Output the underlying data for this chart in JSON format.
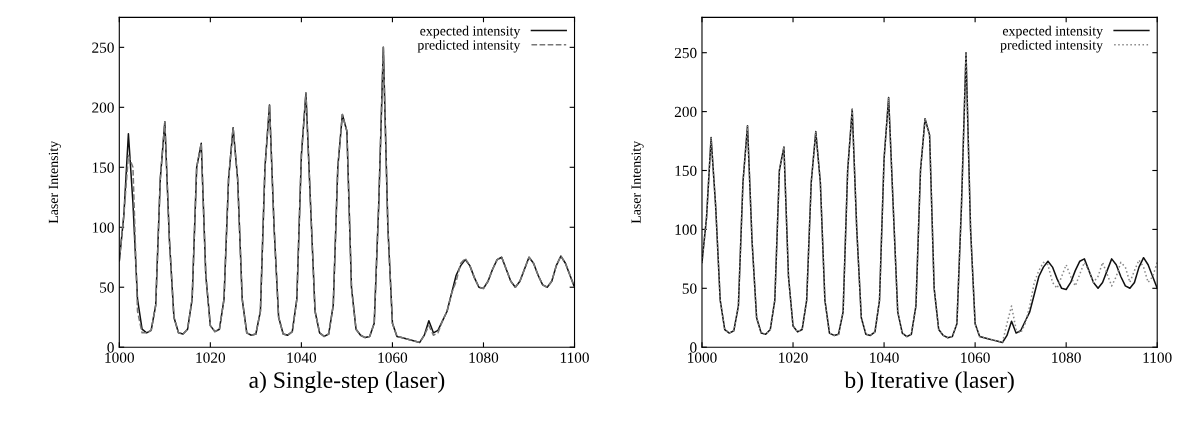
{
  "chart_data": [
    {
      "type": "line",
      "xlabel": "a) Single-step (laser)",
      "ylabel": "Laser Intensity",
      "xlim": [
        1000,
        1100
      ],
      "xticks": [
        1000,
        1020,
        1040,
        1060,
        1080,
        1100
      ],
      "ylim": [
        0,
        275
      ],
      "yticks": [
        0,
        50,
        100,
        150,
        200,
        250
      ],
      "legend": "top right",
      "grid": false,
      "x": [
        1000,
        1001,
        1002,
        1003,
        1004,
        1005,
        1006,
        1007,
        1008,
        1009,
        1010,
        1011,
        1012,
        1013,
        1014,
        1015,
        1016,
        1017,
        1018,
        1019,
        1020,
        1021,
        1022,
        1023,
        1024,
        1025,
        1026,
        1027,
        1028,
        1029,
        1030,
        1031,
        1032,
        1033,
        1034,
        1035,
        1036,
        1037,
        1038,
        1039,
        1040,
        1041,
        1042,
        1043,
        1044,
        1045,
        1046,
        1047,
        1048,
        1049,
        1050,
        1051,
        1052,
        1053,
        1054,
        1055,
        1056,
        1057,
        1058,
        1059,
        1060,
        1061,
        1062,
        1063,
        1064,
        1065,
        1066,
        1067,
        1068,
        1069,
        1070,
        1071,
        1072,
        1073,
        1074,
        1075,
        1076,
        1077,
        1078,
        1079,
        1080,
        1081,
        1082,
        1083,
        1084,
        1085,
        1086,
        1087,
        1088,
        1089,
        1090,
        1091,
        1092,
        1093,
        1094,
        1095,
        1096,
        1097,
        1098,
        1099,
        1100
      ],
      "series": [
        {
          "name": "expected intensity",
          "color": "#111111",
          "line_style": "solid",
          "values": [
            72,
            110,
            178,
            120,
            40,
            15,
            12,
            14,
            35,
            140,
            188,
            90,
            25,
            12,
            11,
            15,
            40,
            150,
            170,
            60,
            18,
            13,
            15,
            40,
            140,
            183,
            140,
            40,
            12,
            10,
            11,
            30,
            150,
            202,
            100,
            25,
            11,
            10,
            13,
            40,
            160,
            212,
            120,
            30,
            12,
            9,
            11,
            35,
            150,
            194,
            180,
            50,
            15,
            10,
            8,
            9,
            20,
            120,
            250,
            100,
            20,
            9,
            8,
            7,
            6,
            5,
            4,
            10,
            22,
            12,
            14,
            22,
            30,
            45,
            60,
            68,
            73,
            68,
            58,
            50,
            49,
            55,
            65,
            73,
            75,
            65,
            55,
            50,
            55,
            65,
            75,
            70,
            60,
            52,
            50,
            55,
            68,
            76,
            70,
            60,
            50
          ]
        },
        {
          "name": "predicted intensity",
          "color": "#777777",
          "line_style": "dashed",
          "values": [
            72,
            110,
            160,
            150,
            30,
            12,
            12,
            14,
            35,
            140,
            188,
            90,
            25,
            12,
            11,
            15,
            40,
            150,
            170,
            60,
            18,
            13,
            15,
            40,
            140,
            183,
            140,
            40,
            12,
            10,
            11,
            30,
            150,
            202,
            100,
            25,
            11,
            10,
            13,
            40,
            160,
            212,
            120,
            30,
            12,
            9,
            11,
            35,
            150,
            194,
            180,
            50,
            15,
            10,
            8,
            9,
            20,
            120,
            250,
            100,
            20,
            9,
            8,
            7,
            6,
            5,
            4,
            10,
            18,
            10,
            12,
            22,
            30,
            45,
            55,
            70,
            74,
            68,
            58,
            50,
            49,
            55,
            65,
            73,
            75,
            65,
            55,
            50,
            55,
            65,
            75,
            70,
            60,
            52,
            50,
            55,
            68,
            76,
            70,
            60,
            50
          ]
        }
      ]
    },
    {
      "type": "line",
      "xlabel": "b) Iterative (laser)",
      "ylabel": "Laser Intensity",
      "xlim": [
        1000,
        1100
      ],
      "xticks": [
        1000,
        1020,
        1040,
        1060,
        1080,
        1100
      ],
      "ylim": [
        0,
        280
      ],
      "yticks": [
        0,
        50,
        100,
        150,
        200,
        250
      ],
      "legend": "top right",
      "grid": false,
      "x": [
        1000,
        1001,
        1002,
        1003,
        1004,
        1005,
        1006,
        1007,
        1008,
        1009,
        1010,
        1011,
        1012,
        1013,
        1014,
        1015,
        1016,
        1017,
        1018,
        1019,
        1020,
        1021,
        1022,
        1023,
        1024,
        1025,
        1026,
        1027,
        1028,
        1029,
        1030,
        1031,
        1032,
        1033,
        1034,
        1035,
        1036,
        1037,
        1038,
        1039,
        1040,
        1041,
        1042,
        1043,
        1044,
        1045,
        1046,
        1047,
        1048,
        1049,
        1050,
        1051,
        1052,
        1053,
        1054,
        1055,
        1056,
        1057,
        1058,
        1059,
        1060,
        1061,
        1062,
        1063,
        1064,
        1065,
        1066,
        1067,
        1068,
        1069,
        1070,
        1071,
        1072,
        1073,
        1074,
        1075,
        1076,
        1077,
        1078,
        1079,
        1080,
        1081,
        1082,
        1083,
        1084,
        1085,
        1086,
        1087,
        1088,
        1089,
        1090,
        1091,
        1092,
        1093,
        1094,
        1095,
        1096,
        1097,
        1098,
        1099,
        1100
      ],
      "series": [
        {
          "name": "expected intensity",
          "color": "#111111",
          "line_style": "solid",
          "values": [
            72,
            110,
            178,
            120,
            40,
            15,
            12,
            14,
            35,
            140,
            188,
            90,
            25,
            12,
            11,
            15,
            40,
            150,
            170,
            60,
            18,
            13,
            15,
            40,
            140,
            183,
            140,
            40,
            12,
            10,
            11,
            30,
            150,
            202,
            100,
            25,
            11,
            10,
            13,
            40,
            160,
            212,
            120,
            30,
            12,
            9,
            11,
            35,
            150,
            194,
            180,
            50,
            15,
            10,
            8,
            9,
            20,
            120,
            250,
            100,
            20,
            9,
            8,
            7,
            6,
            5,
            4,
            10,
            22,
            12,
            14,
            22,
            30,
            45,
            60,
            68,
            73,
            68,
            58,
            50,
            49,
            55,
            65,
            73,
            75,
            65,
            55,
            50,
            55,
            65,
            75,
            70,
            60,
            52,
            50,
            55,
            68,
            76,
            70,
            60,
            50
          ]
        },
        {
          "name": "predicted intensity",
          "color": "#888888",
          "line_style": "dotted",
          "values": [
            72,
            110,
            178,
            120,
            40,
            15,
            12,
            14,
            35,
            140,
            188,
            90,
            25,
            12,
            11,
            15,
            40,
            150,
            170,
            60,
            18,
            13,
            15,
            40,
            140,
            183,
            140,
            40,
            12,
            10,
            11,
            30,
            150,
            202,
            100,
            25,
            11,
            10,
            13,
            40,
            160,
            212,
            120,
            30,
            12,
            9,
            11,
            35,
            150,
            194,
            180,
            50,
            15,
            10,
            8,
            9,
            20,
            120,
            250,
            100,
            20,
            9,
            8,
            7,
            6,
            5,
            4,
            20,
            35,
            15,
            12,
            20,
            35,
            55,
            65,
            72,
            70,
            55,
            50,
            60,
            70,
            60,
            52,
            62,
            72,
            65,
            55,
            60,
            72,
            62,
            52,
            60,
            72,
            68,
            55,
            65,
            74,
            68,
            55,
            60,
            72
          ]
        }
      ]
    }
  ]
}
